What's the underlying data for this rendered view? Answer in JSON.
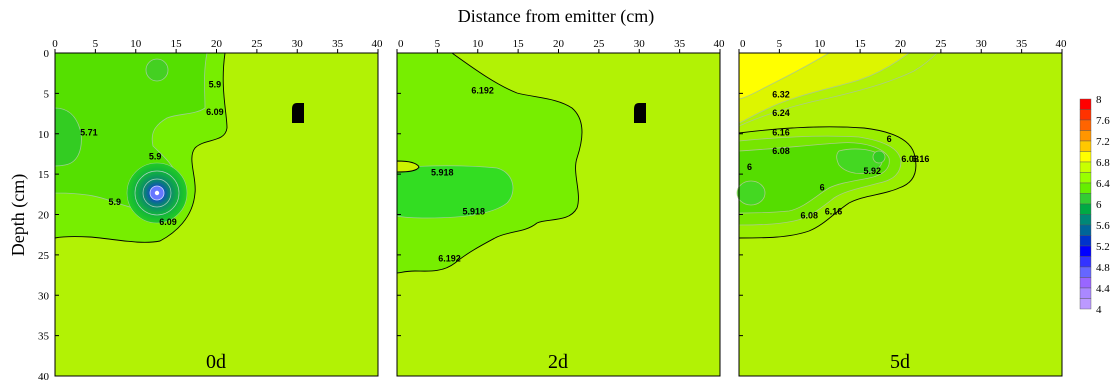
{
  "chart_data": {
    "type": "contour",
    "xlabel": "Distance from emitter (cm)",
    "ylabel": "Depth (cm)",
    "xlim": [
      0,
      40
    ],
    "ylim": [
      40,
      0
    ],
    "xticks": [
      "0",
      "5",
      "10",
      "15",
      "20",
      "25",
      "30",
      "35",
      "40"
    ],
    "yticks": [
      "0",
      "5",
      "10",
      "15",
      "20",
      "25",
      "30",
      "35",
      "40"
    ],
    "colorbar": {
      "labels": [
        "8",
        "7.6",
        "7.2",
        "6.8",
        "6.4",
        "6",
        "5.6",
        "5.2",
        "4.8",
        "4.4",
        "4"
      ],
      "colors": [
        "#ff0000",
        "#ff3200",
        "#ff6400",
        "#ff9600",
        "#ffc800",
        "#ffff00",
        "#c8ff00",
        "#99ff00",
        "#66ee00",
        "#33cc33",
        "#00aa44",
        "#008877",
        "#006699",
        "#0033cc",
        "#0000ff",
        "#3333ff",
        "#6666ff",
        "#9966ff",
        "#aa88ff",
        "#bb99ff"
      ]
    },
    "panels": [
      {
        "title": "0d",
        "background": "#b2f205",
        "dripper": [
          30,
          8
        ],
        "contour_labels": [
          {
            "text": "5.9",
            "x": 19.8,
            "y": 4.3
          },
          {
            "text": "6.09",
            "x": 19.8,
            "y": 7.7
          },
          {
            "text": "5.71",
            "x": 4.2,
            "y": 10.2
          },
          {
            "text": "5.9",
            "x": 12.4,
            "y": 13.2
          },
          {
            "text": "5.9",
            "x": 7.4,
            "y": 18.8
          },
          {
            "text": "6.09",
            "x": 14.0,
            "y": 21.3
          }
        ]
      },
      {
        "title": "2d",
        "background": "#b2f205",
        "dripper": [
          30,
          8
        ],
        "contour_labels": [
          {
            "text": "6.192",
            "x": 10.6,
            "y": 5.0
          },
          {
            "text": "5.918",
            "x": 5.6,
            "y": 15.2
          },
          {
            "text": "5.918",
            "x": 9.5,
            "y": 20.0
          },
          {
            "text": "6.192",
            "x": 6.5,
            "y": 25.8
          }
        ]
      },
      {
        "title": "5d",
        "background": "#b2f205",
        "contour_labels": [
          {
            "text": "6.32",
            "x": 5.2,
            "y": 5.5
          },
          {
            "text": "6.24",
            "x": 5.2,
            "y": 7.8
          },
          {
            "text": "6.16",
            "x": 5.2,
            "y": 10.2
          },
          {
            "text": "6.08",
            "x": 5.2,
            "y": 12.5
          },
          {
            "text": "6",
            "x": 1.3,
            "y": 14.5
          },
          {
            "text": "6",
            "x": 10.3,
            "y": 17.0
          },
          {
            "text": "6",
            "x": 18.6,
            "y": 11.0
          },
          {
            "text": "5.92",
            "x": 16.5,
            "y": 15.0
          },
          {
            "text": "6.08",
            "x": 21.2,
            "y": 13.5
          },
          {
            "text": "6.16",
            "x": 22.5,
            "y": 13.5
          },
          {
            "text": "6.08",
            "x": 8.7,
            "y": 20.5
          },
          {
            "text": "6.16",
            "x": 11.7,
            "y": 20.0
          }
        ]
      }
    ]
  }
}
